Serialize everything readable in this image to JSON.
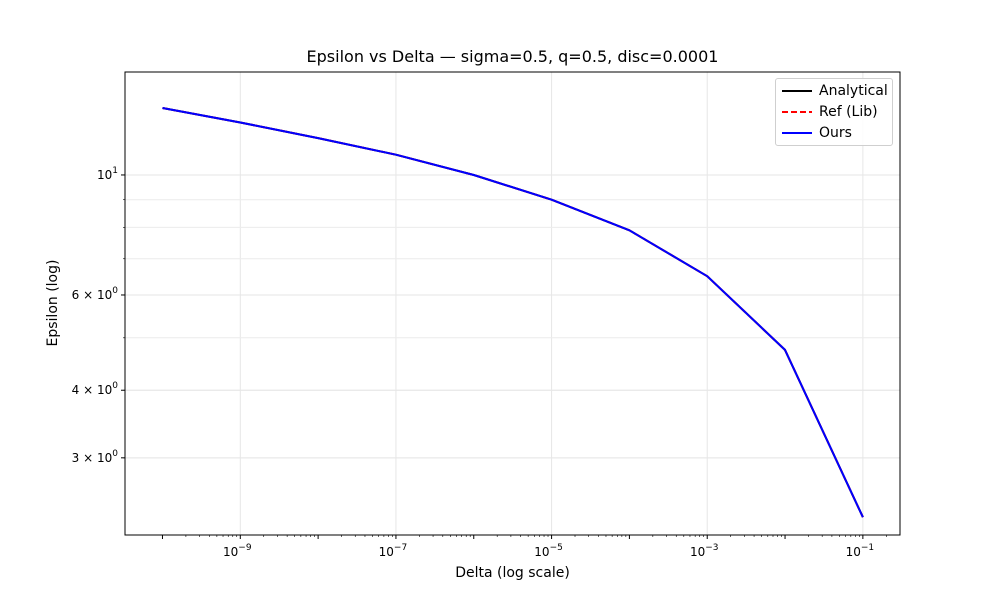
{
  "chart_data": {
    "type": "line",
    "title": "Epsilon vs Delta — sigma=0.5, q=0.5, disc=0.0001",
    "xlabel": "Delta (log scale)",
    "ylabel": "Epsilon (log)",
    "xscale": "log",
    "yscale": "log",
    "xlim": [
      3.3e-11,
      0.3
    ],
    "ylim": [
      2.16,
      15.5
    ],
    "grid": true,
    "legend_position": "top-right",
    "x_ticks": [
      {
        "value": 1e-09,
        "base": "10",
        "exp": "−9"
      },
      {
        "value": 1e-07,
        "base": "10",
        "exp": "−7"
      },
      {
        "value": 1e-05,
        "base": "10",
        "exp": "−5"
      },
      {
        "value": 0.001,
        "base": "10",
        "exp": "−3"
      },
      {
        "value": 0.1,
        "base": "10",
        "exp": "−1"
      }
    ],
    "y_ticks": [
      {
        "value": 10,
        "base": "10",
        "exp": "1"
      },
      {
        "value": 6,
        "base": "6 × 10",
        "exp": "0"
      },
      {
        "value": 4,
        "base": "4 × 10",
        "exp": "0"
      },
      {
        "value": 3,
        "base": "3 × 10",
        "exp": "0"
      }
    ],
    "y_minor_ticks": [
      3,
      4,
      5,
      6,
      7,
      8,
      9,
      20
    ],
    "x": [
      1e-10,
      1e-09,
      1e-08,
      1e-07,
      1e-06,
      1e-05,
      0.0001,
      0.001,
      0.01,
      0.1
    ],
    "series": [
      {
        "name": "Analytical",
        "color": "#000000",
        "dash": "solid",
        "width": 2,
        "values": [
          13.3,
          12.5,
          11.7,
          10.9,
          10.0,
          9.0,
          7.9,
          6.5,
          4.75,
          2.33
        ]
      },
      {
        "name": "Ref (Lib)",
        "color": "#ff0000",
        "dash": "dashed",
        "width": 2,
        "values": [
          13.3,
          12.5,
          11.7,
          10.9,
          10.0,
          9.0,
          7.9,
          6.5,
          4.75,
          2.33
        ]
      },
      {
        "name": "Ours",
        "color": "#0000ff",
        "dash": "solid",
        "width": 2,
        "values": [
          13.3,
          12.5,
          11.7,
          10.9,
          10.0,
          9.0,
          7.9,
          6.5,
          4.75,
          2.33
        ]
      }
    ]
  }
}
